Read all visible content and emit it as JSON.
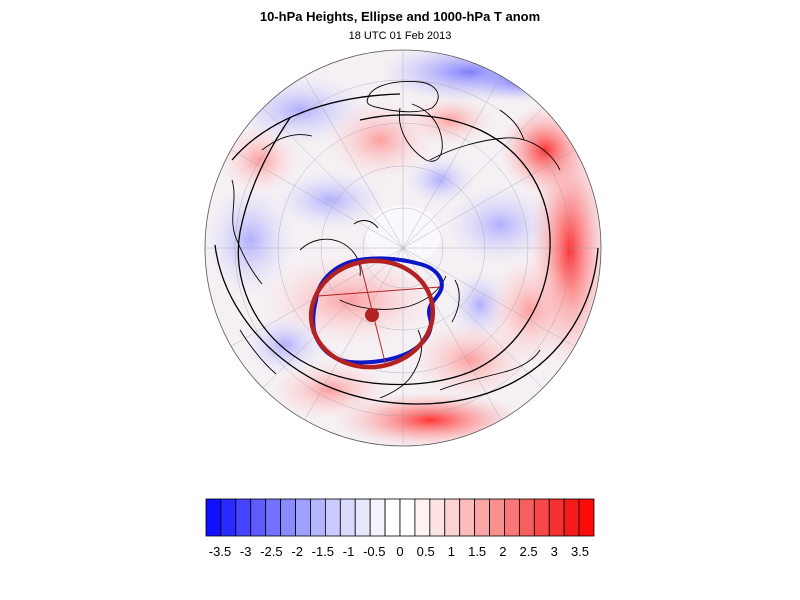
{
  "title": "10-hPa Heights, Ellipse and 1000-hPa T anom",
  "subtitle": "18 UTC 01 Feb 2013",
  "projection": "polar-stereographic-north",
  "overlays": {
    "ellipse_color": "#b22222",
    "height_contour_color": "#1010c0",
    "coastline_color": "#000000"
  },
  "colorbar": {
    "labels": [
      "-3.5",
      "-3",
      "-2.5",
      "-2",
      "-1.5",
      "-1",
      "-0.5",
      "0",
      "0.5",
      "1",
      "1.5",
      "2",
      "2.5",
      "3",
      "3.5"
    ],
    "colors": [
      "#1010ff",
      "#2a2aff",
      "#4545ff",
      "#5c5cff",
      "#7272ff",
      "#8a8aff",
      "#a0a0ff",
      "#b6b6ff",
      "#cacaff",
      "#dadafe",
      "#e8e8fd",
      "#f4f4ff",
      "#ffffff",
      "#ffffff",
      "#fff2f2",
      "#fde4e4",
      "#fcd2d2",
      "#fbbcbc",
      "#faa6a6",
      "#f99090",
      "#f87878",
      "#f75e5e",
      "#f64848",
      "#f53030",
      "#f41a1a",
      "#ff0a0a"
    ]
  }
}
